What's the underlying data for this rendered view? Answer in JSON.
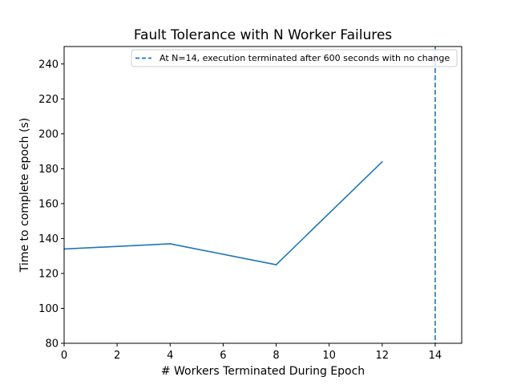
{
  "chart_data": {
    "type": "line",
    "title": "Fault Tolerance with N Worker Failures",
    "xlabel": "# Workers Terminated During Epoch",
    "ylabel": "Time to complete epoch (s)",
    "xlim": [
      0,
      15
    ],
    "ylim": [
      80,
      250
    ],
    "xticks": [
      0,
      2,
      4,
      6,
      8,
      10,
      12,
      14
    ],
    "yticks": [
      80,
      100,
      120,
      140,
      160,
      180,
      200,
      220,
      240
    ],
    "grid": false,
    "series": [
      {
        "x": [
          0,
          4,
          8,
          12
        ],
        "y": [
          134,
          137,
          125,
          184
        ],
        "color": "#1f77b4"
      }
    ],
    "vline": {
      "x": 14,
      "style": "dashed",
      "color": "#1f77b4",
      "label": "At N=14, execution terminated after 600 seconds with no change"
    },
    "legend_position": "top-right"
  }
}
